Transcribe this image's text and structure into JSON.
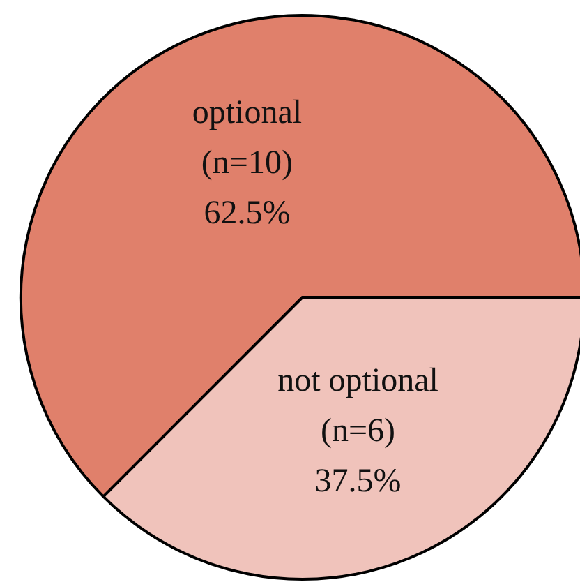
{
  "chart_data": {
    "type": "pie",
    "categories": [
      "optional",
      "not optional"
    ],
    "values": [
      62.5,
      37.5
    ],
    "colors": [
      "#e0806b",
      "#f0c3bb"
    ],
    "value_labels": [
      "(n=10)\n62.5%",
      "(n=6)\n37.5%"
    ],
    "legend": false
  }
}
